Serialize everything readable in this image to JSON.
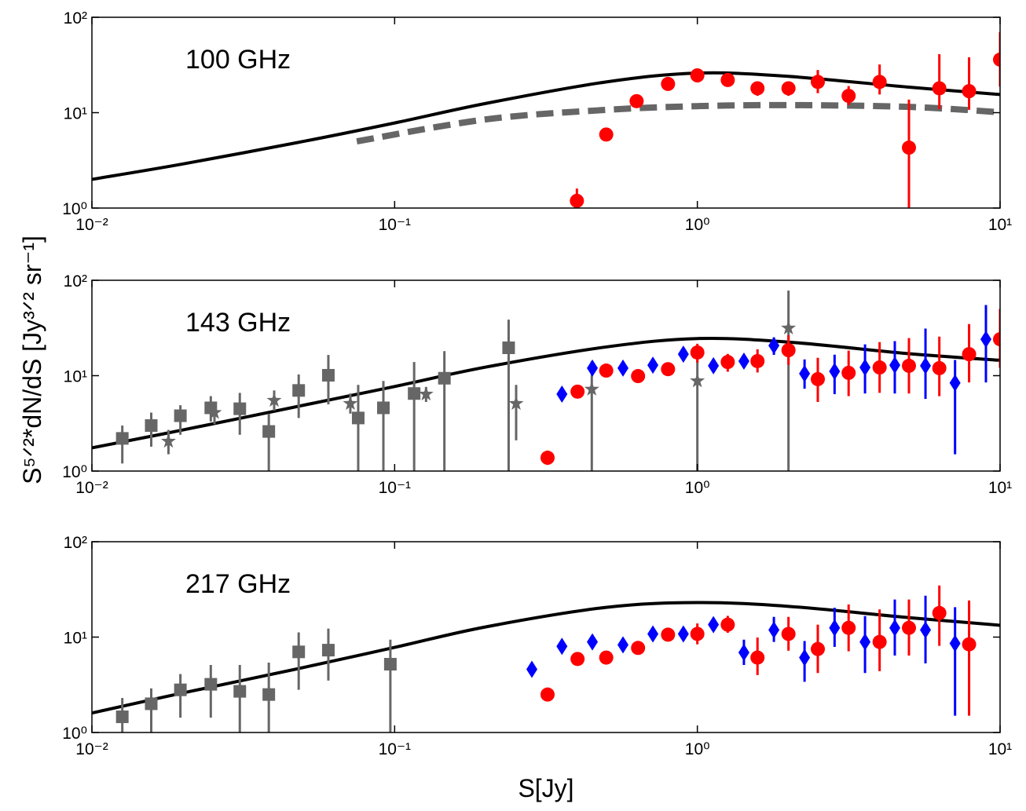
{
  "chart_data": [
    {
      "type": "scatter",
      "annotation": "100 GHz",
      "xlog": true,
      "ylog": true,
      "xlim": [
        0.01,
        10
      ],
      "ylim": [
        1,
        100
      ],
      "xticks": [
        {
          "value": 0.01,
          "label": "10⁻²"
        },
        {
          "value": 0.1,
          "label": "10⁻¹"
        },
        {
          "value": 1,
          "label": "10⁰"
        },
        {
          "value": 10,
          "label": "10¹"
        }
      ],
      "yticks": [
        {
          "value": 1,
          "label": "10⁰"
        },
        {
          "value": 10,
          "label": "10¹"
        },
        {
          "value": 100,
          "label": "10²"
        }
      ],
      "series": [
        {
          "marker": "line",
          "color": "#000000",
          "x": [
            0.01,
            0.02,
            0.05,
            0.1,
            0.2,
            0.5,
            1,
            2,
            5,
            10
          ],
          "values": [
            2.0,
            2.9,
            5.0,
            7.8,
            12.5,
            21,
            26,
            24,
            18.5,
            15.5
          ]
        },
        {
          "marker": "dashed",
          "color": "#666666",
          "x": [
            0.075,
            0.2,
            0.5,
            1,
            2,
            5,
            10
          ],
          "values": [
            5.0,
            8.5,
            10.7,
            11.7,
            12,
            11.5,
            10.1
          ]
        },
        {
          "marker": "circle",
          "color": "#ff0000",
          "x": [
            0.4,
            0.5,
            0.63,
            0.8,
            1.0,
            1.26,
            1.58,
            2.0,
            2.5,
            3.16,
            4.0,
            5.0,
            6.3,
            7.9,
            10
          ],
          "values": [
            1.19,
            5.9,
            13.2,
            20,
            24.6,
            22,
            18,
            18,
            21,
            15,
            21,
            4.3,
            18,
            16.8,
            36
          ],
          "lower": [
            1.0,
            null,
            null,
            null,
            null,
            null,
            15,
            15,
            16,
            12,
            15.5,
            1.0,
            10.9,
            10.7,
            18.8
          ],
          "upper": [
            1.6,
            null,
            null,
            null,
            null,
            null,
            21,
            21,
            28,
            19,
            32,
            13.7,
            41,
            38,
            70
          ]
        }
      ]
    },
    {
      "type": "scatter",
      "annotation": "143 GHz",
      "ylabel": "S⁵ᐟ²*dN/dS [Jy³ᐟ² sr⁻¹]",
      "xlog": true,
      "ylog": true,
      "xlim": [
        0.01,
        10
      ],
      "ylim": [
        1,
        100
      ],
      "xticks": [
        {
          "value": 0.01,
          "label": "10⁻²"
        },
        {
          "value": 0.1,
          "label": "10⁻¹"
        },
        {
          "value": 1,
          "label": "10⁰"
        },
        {
          "value": 10,
          "label": "10¹"
        }
      ],
      "yticks": [
        {
          "value": 1,
          "label": "10⁰"
        },
        {
          "value": 10,
          "label": "10¹"
        },
        {
          "value": 100,
          "label": "10²"
        }
      ],
      "series": [
        {
          "marker": "line",
          "color": "#000000",
          "x": [
            0.01,
            0.02,
            0.05,
            0.1,
            0.2,
            0.5,
            1,
            2,
            5,
            10
          ],
          "values": [
            1.75,
            2.7,
            4.9,
            7.7,
            12.3,
            20,
            24.5,
            22.5,
            17,
            14.5
          ]
        },
        {
          "marker": "square",
          "color": "#666666",
          "x": [
            0.0126,
            0.0157,
            0.0196,
            0.0247,
            0.0308,
            0.0384,
            0.0482,
            0.0604,
            0.0758,
            0.0918,
            0.116,
            0.146,
            0.238
          ],
          "values": [
            2.2,
            3.0,
            3.8,
            4.6,
            4.5,
            2.6,
            7.0,
            10.1,
            3.6,
            4.6,
            6.5,
            9.4,
            19.6
          ],
          "lower": [
            1.2,
            1.8,
            2.4,
            3.3,
            2.4,
            1,
            3.6,
            5.0,
            1,
            1,
            1,
            1,
            1
          ],
          "upper": [
            3.0,
            4.1,
            4.9,
            6.1,
            6.6,
            4.0,
            10.3,
            16.5,
            8.0,
            8.8,
            13.9,
            18.1,
            38.7
          ]
        },
        {
          "marker": "star",
          "color": "#666666",
          "x": [
            0.0179,
            0.0254,
            0.04,
            0.0714,
            0.127,
            0.252,
            0.448,
            1.0,
            2.0
          ],
          "values": [
            2.05,
            4.1,
            5.5,
            5.1,
            6.4,
            5.1,
            7.2,
            8.8,
            31.5
          ],
          "lower": [
            1.5,
            3.1,
            4.3,
            4.0,
            5.3,
            2.1,
            1,
            1,
            1
          ],
          "upper": [
            2.7,
            5.3,
            7.0,
            6.5,
            7.6,
            8.0,
            14.2,
            18.5,
            78
          ]
        },
        {
          "marker": "diamond",
          "color": "#0000ff",
          "x": [
            0.357,
            0.45,
            0.568,
            0.713,
            0.899,
            1.13,
            1.425,
            1.79,
            2.26,
            2.84,
            3.58,
            4.49,
            5.67,
            7.1,
            8.98
          ],
          "values": [
            6.4,
            12.0,
            12.0,
            12.9,
            16.8,
            12.7,
            14.2,
            20.7,
            10.5,
            11.1,
            12.2,
            12.9,
            12.7,
            8.4,
            24.1
          ],
          "lower": [
            null,
            null,
            null,
            null,
            null,
            null,
            null,
            16.5,
            7.3,
            6.4,
            6.5,
            6.5,
            5.7,
            1.5,
            8.5
          ],
          "upper": [
            null,
            null,
            null,
            null,
            null,
            null,
            null,
            25.2,
            14.8,
            16.6,
            21.3,
            23.0,
            31.2,
            14.6,
            55
          ]
        },
        {
          "marker": "circle",
          "color": "#ff0000",
          "x": [
            0.32,
            0.402,
            0.5,
            0.637,
            0.8,
            1.0,
            1.26,
            1.58,
            2.0,
            2.5,
            3.16,
            4.0,
            5.0,
            6.3,
            7.9,
            10
          ],
          "values": [
            1.38,
            6.8,
            11.3,
            9.9,
            11.7,
            17.5,
            13.9,
            14.2,
            18.5,
            9.2,
            10.7,
            12.2,
            12.7,
            12.0,
            16.8,
            24.1
          ],
          "lower": [
            1.16,
            null,
            null,
            null,
            null,
            13.7,
            11.0,
            10.8,
            13.0,
            5.3,
            6.1,
            6.6,
            6.5,
            6.1,
            8.5,
            12.1
          ],
          "upper": [
            1.64,
            null,
            null,
            null,
            null,
            21.6,
            16.9,
            18.9,
            26.5,
            15.4,
            18.3,
            22.5,
            24.8,
            25.7,
            34.8,
            50
          ]
        }
      ]
    },
    {
      "type": "scatter",
      "annotation": "217 GHz",
      "xlabel": "S[Jy]",
      "xlog": true,
      "ylog": true,
      "xlim": [
        0.01,
        10
      ],
      "ylim": [
        1,
        100
      ],
      "xticks": [
        {
          "value": 0.01,
          "label": "10⁻²"
        },
        {
          "value": 0.1,
          "label": "10⁻¹"
        },
        {
          "value": 1,
          "label": "10⁰"
        },
        {
          "value": 10,
          "label": "10¹"
        }
      ],
      "yticks": [
        {
          "value": 1,
          "label": "10⁰"
        },
        {
          "value": 10,
          "label": "10¹"
        },
        {
          "value": 100,
          "label": "10²"
        }
      ],
      "series": [
        {
          "marker": "line",
          "color": "#000000",
          "x": [
            0.01,
            0.02,
            0.05,
            0.1,
            0.2,
            0.5,
            1,
            2,
            5,
            10
          ],
          "values": [
            1.6,
            2.6,
            4.8,
            7.8,
            12.8,
            20.5,
            23,
            21,
            16,
            13.3
          ]
        },
        {
          "marker": "square",
          "color": "#666666",
          "x": [
            0.0126,
            0.0157,
            0.0196,
            0.0247,
            0.0308,
            0.0384,
            0.0482,
            0.0604,
            0.0968
          ],
          "values": [
            1.46,
            2.0,
            2.8,
            3.2,
            2.7,
            2.5,
            7.0,
            7.3,
            5.2
          ],
          "lower": [
            1,
            1,
            1.43,
            1.43,
            1,
            1,
            2.8,
            3.5,
            1
          ],
          "upper": [
            2.3,
            2.9,
            4.1,
            5.1,
            5.1,
            5.4,
            11.2,
            12.3,
            9.4
          ]
        },
        {
          "marker": "diamond",
          "color": "#0000ff",
          "x": [
            0.284,
            0.357,
            0.45,
            0.568,
            0.713,
            0.899,
            1.13,
            1.425,
            1.79,
            2.26,
            2.84,
            3.58,
            4.49,
            5.67,
            7.1
          ],
          "values": [
            4.6,
            8.0,
            8.9,
            8.3,
            10.8,
            10.8,
            13.5,
            6.9,
            11.9,
            6.1,
            12.5,
            8.9,
            12.5,
            11.9,
            8.6
          ],
          "lower": [
            null,
            null,
            null,
            null,
            null,
            null,
            null,
            5.1,
            8.9,
            3.4,
            7.9,
            4.2,
            6.4,
            5.3,
            1.5
          ],
          "upper": [
            null,
            null,
            null,
            null,
            null,
            null,
            null,
            9.4,
            16.3,
            9.1,
            20.3,
            16.6,
            24.8,
            27.2,
            20.6
          ]
        },
        {
          "marker": "circle",
          "color": "#ff0000",
          "x": [
            0.32,
            0.402,
            0.5,
            0.637,
            0.8,
            1.0,
            1.26,
            1.58,
            2.0,
            2.5,
            3.16,
            4.0,
            5.0,
            6.3,
            7.9
          ],
          "values": [
            2.5,
            5.9,
            6.1,
            7.7,
            10.6,
            10.8,
            13.5,
            6.1,
            10.8,
            7.5,
            12.5,
            8.9,
            12.5,
            17.9,
            8.4
          ],
          "lower": [
            null,
            null,
            null,
            null,
            null,
            8.4,
            11.1,
            4.0,
            7.2,
            4.2,
            7.1,
            4.4,
            6.4,
            8.1,
            1.5
          ],
          "upper": [
            null,
            null,
            null,
            null,
            null,
            13.9,
            16.7,
            9.9,
            16.3,
            13.5,
            22,
            19.5,
            24.8,
            34.8,
            24.2
          ]
        }
      ]
    }
  ]
}
